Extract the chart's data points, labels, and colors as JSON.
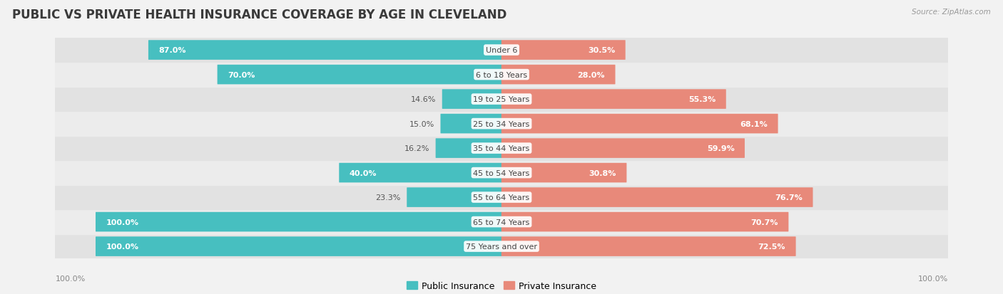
{
  "title": "PUBLIC VS PRIVATE HEALTH INSURANCE COVERAGE BY AGE IN CLEVELAND",
  "source": "Source: ZipAtlas.com",
  "categories": [
    "Under 6",
    "6 to 18 Years",
    "19 to 25 Years",
    "25 to 34 Years",
    "35 to 44 Years",
    "45 to 54 Years",
    "55 to 64 Years",
    "65 to 74 Years",
    "75 Years and over"
  ],
  "public_values": [
    87.0,
    70.0,
    14.6,
    15.0,
    16.2,
    40.0,
    23.3,
    100.0,
    100.0
  ],
  "private_values": [
    30.5,
    28.0,
    55.3,
    68.1,
    59.9,
    30.8,
    76.7,
    70.7,
    72.5
  ],
  "public_color": "#47bfc0",
  "private_color": "#e8897a",
  "bg_color": "#f2f2f2",
  "row_bg_dark": "#e2e2e2",
  "row_bg_light": "#ececec",
  "max_value": 100.0,
  "title_fontsize": 12,
  "bar_height": 0.72,
  "legend_public": "Public Insurance",
  "legend_private": "Private Insurance"
}
